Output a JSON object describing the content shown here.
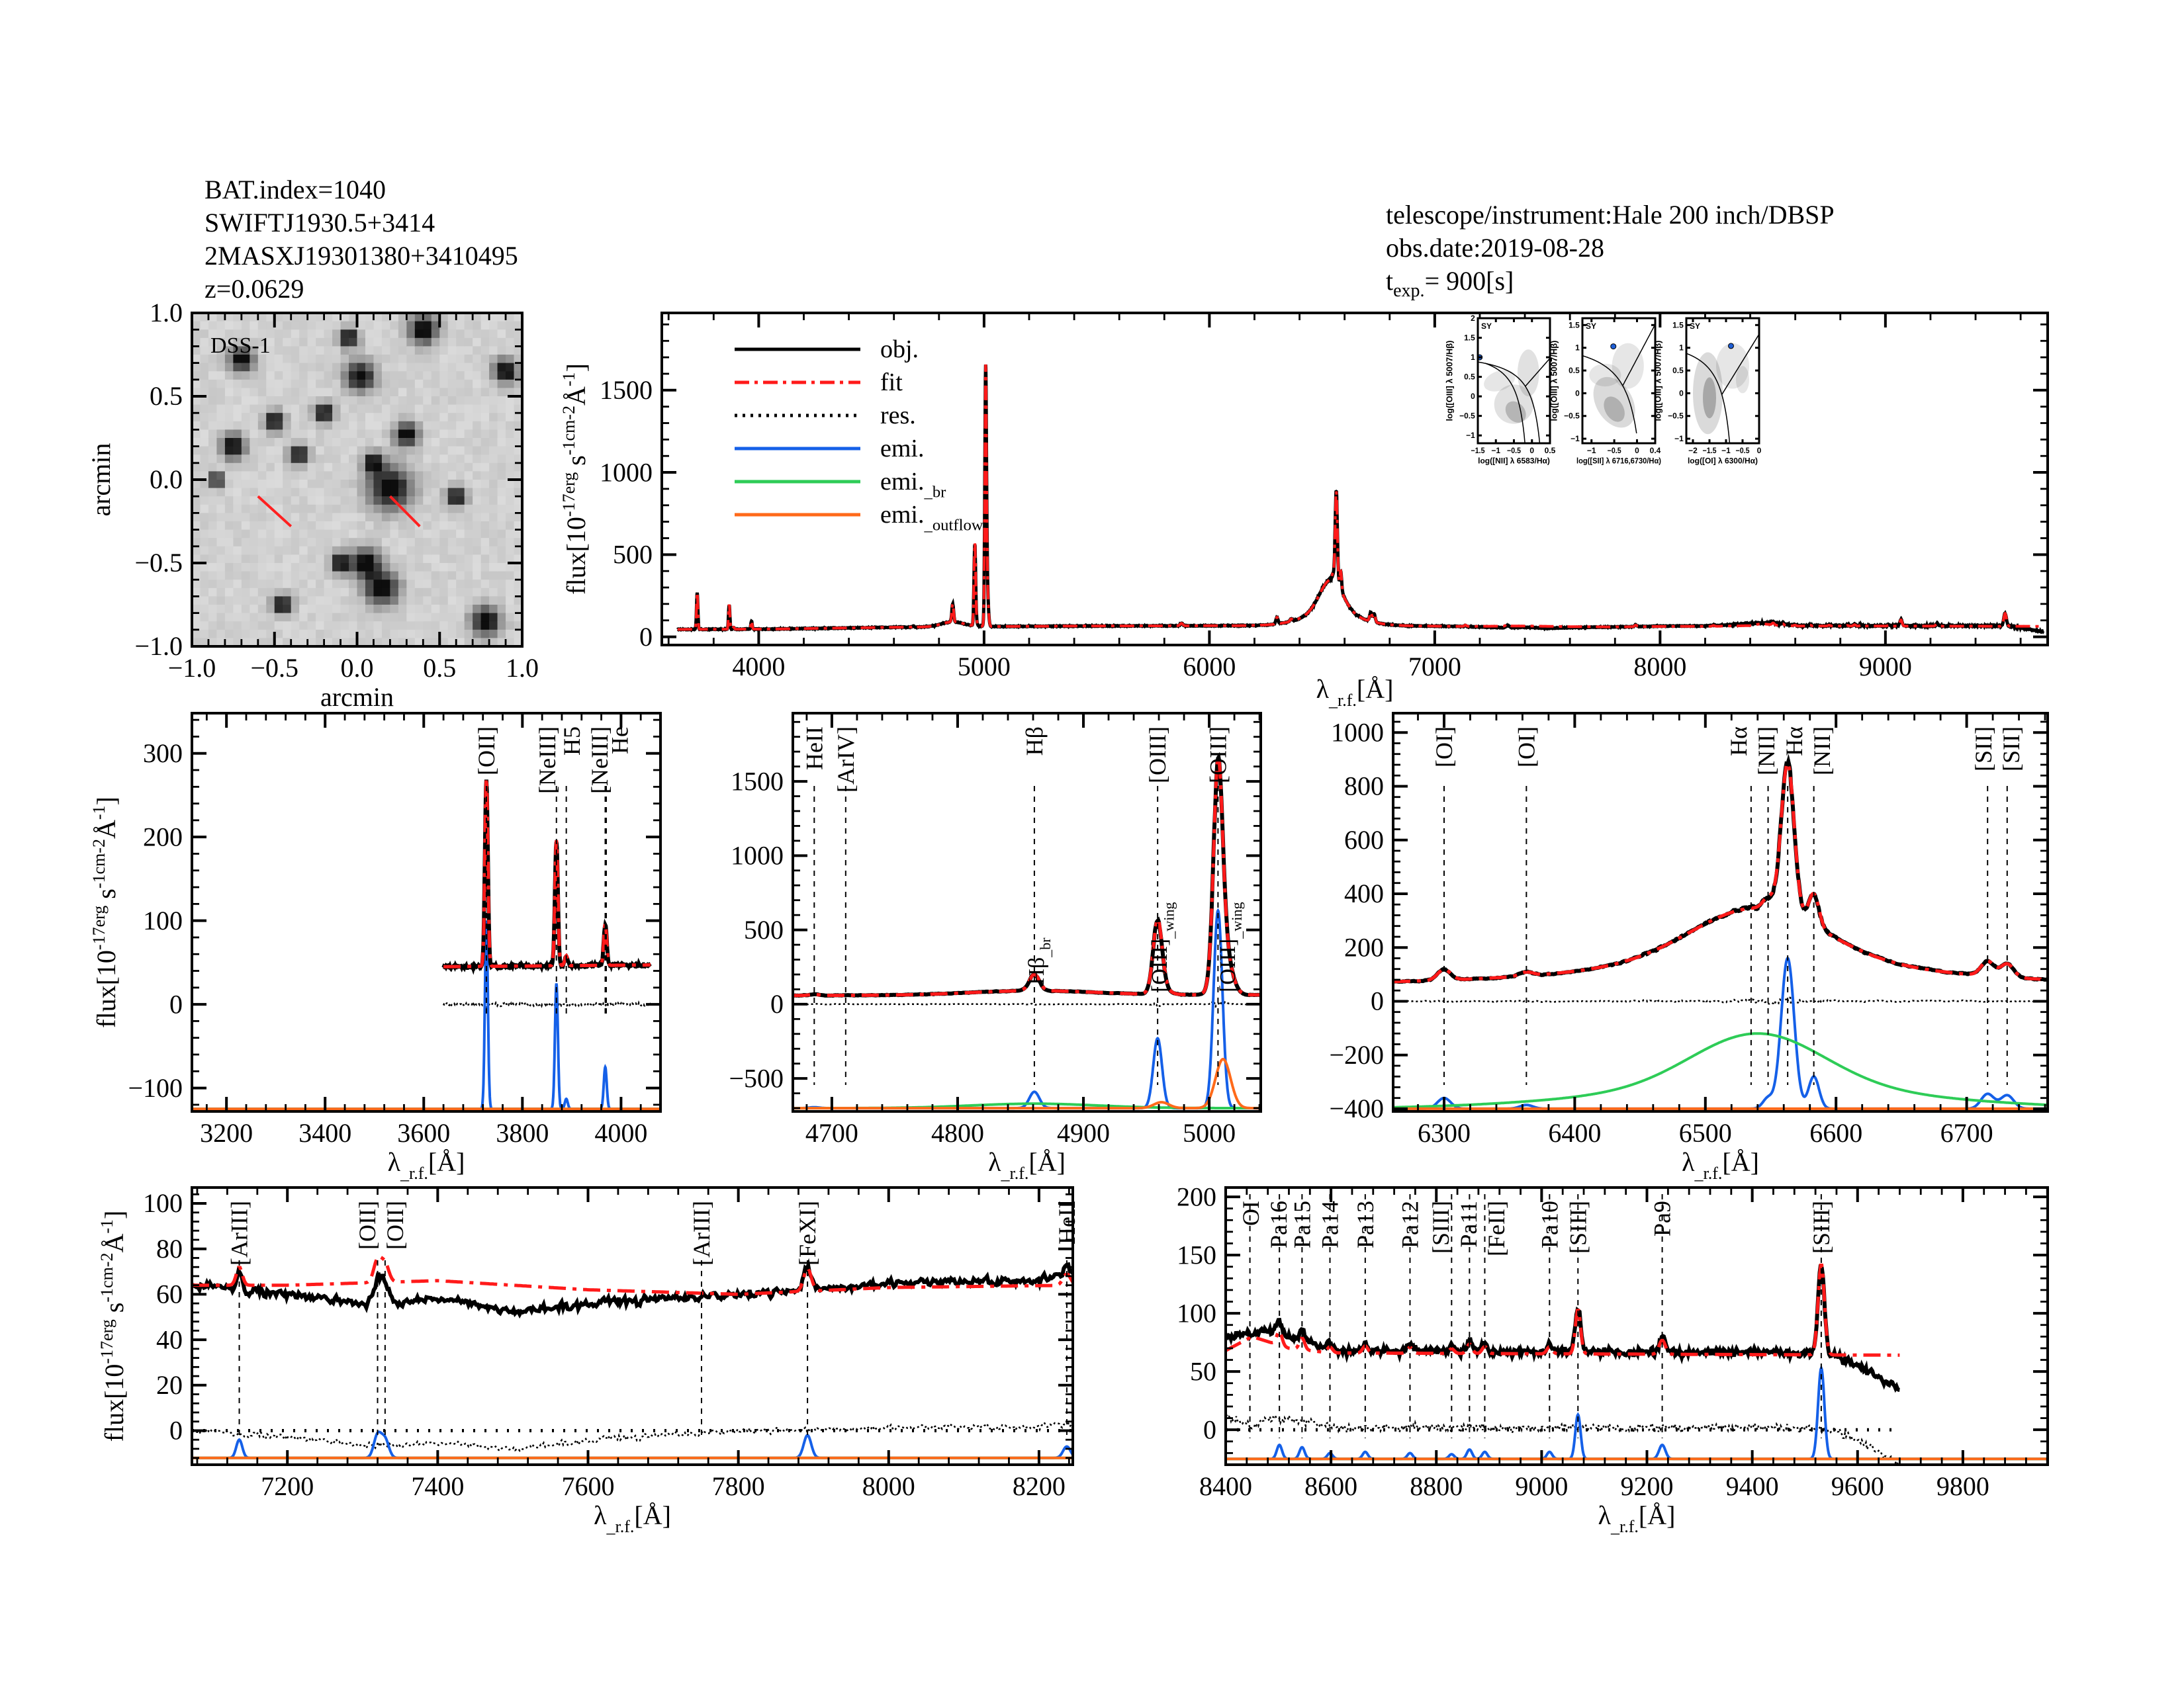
{
  "header_left": [
    "BAT.index=1040",
    "SWIFTJ1930.5+3414",
    "2MASXJ19301380+3410495",
    "z=0.0629"
  ],
  "header_right": {
    "instrument": "telescope/instrument:Hale 200 inch/DBSP",
    "obs_date": "obs.date:2019-08-28",
    "texp_label": "t",
    "texp_sub": "exp.",
    "texp_value": "=  900[s]"
  },
  "colors": {
    "obj": "#000000",
    "fit": "#ff1a1a",
    "res": "#000000",
    "emi": "#1560e8",
    "emi_br": "#2ecc57",
    "emi_outflow": "#ff6a1a",
    "arIV_label": "#e8261a",
    "sy_label": "#1560e8",
    "bpt_point": "#1f5fd6"
  },
  "labels": {
    "flux": "flux[10^-17erg s^-1cm^-2Å^-1]",
    "wavelength": "λ_r.f.[Å]",
    "arcmin": "arcmin",
    "dss": "DSS-1"
  },
  "legend": [
    {
      "label": "obj.",
      "style": "solid",
      "color": "#000000"
    },
    {
      "label": "fit",
      "style": "dashdot",
      "color": "#ff1a1a"
    },
    {
      "label": "res.",
      "style": "dotted",
      "color": "#000000"
    },
    {
      "label": "emi.",
      "style": "solid",
      "color": "#1560e8"
    },
    {
      "label": "emi._br",
      "style": "solid",
      "color": "#2ecc57"
    },
    {
      "label": "emi._outflow",
      "style": "solid",
      "color": "#ff6a1a"
    }
  ],
  "chart_data": [
    {
      "id": "dss",
      "type": "image",
      "title": "DSS-1",
      "xlabel": "arcmin",
      "ylabel": "arcmin",
      "xlim": [
        -1.0,
        1.0
      ],
      "ylim": [
        -1.0,
        1.0
      ],
      "xticks": [
        -1.0,
        -0.5,
        0.0,
        0.5,
        1.0
      ],
      "yticks": [
        -1.0,
        -0.5,
        0.0,
        0.5,
        1.0
      ],
      "tick_labels": [
        "−1.0",
        "−0.5",
        "0.0",
        "0.5",
        "1.0"
      ]
    },
    {
      "id": "main",
      "type": "line",
      "xlabel": "λ_r.f.[Å]",
      "ylabel": "flux[10^-17erg s^-1cm^-2Å^-1]",
      "xlim": [
        3570,
        9720
      ],
      "ylim": [
        -50,
        1970
      ],
      "xticks": [
        4000,
        5000,
        6000,
        7000,
        8000,
        9000
      ],
      "yticks": [
        0,
        500,
        1000,
        1500
      ],
      "spectrum_range": [
        3640,
        9700
      ],
      "legend_position": "top-left"
    },
    {
      "id": "p1",
      "type": "line",
      "xlabel": "λ_r.f.[Å]",
      "ylabel": "flux[10^-17erg s^-1cm^-2Å^-1]",
      "xlim": [
        3130,
        4080
      ],
      "ylim": [
        -128,
        348
      ],
      "xticks": [
        3200,
        3400,
        3600,
        3800,
        4000
      ],
      "yticks": [
        -100,
        0,
        100,
        200,
        300
      ],
      "spectrum_range": [
        3640,
        4060
      ],
      "emi_offset": -125,
      "markers": [
        {
          "wl": 3727,
          "label": "[OII]"
        },
        {
          "wl": 3869,
          "label": "[NeIII]"
        },
        {
          "wl": 3889,
          "label": "H5"
        },
        {
          "wl": 3968,
          "label": "[NeIII]"
        },
        {
          "wl": 3970,
          "label": "He"
        }
      ]
    },
    {
      "id": "p2",
      "type": "line",
      "xlabel": "λ_r.f.[Å]",
      "ylabel": "",
      "xlim": [
        4669,
        5041
      ],
      "ylim": [
        -722,
        1959
      ],
      "xticks": [
        4700,
        4800,
        4900,
        5000
      ],
      "yticks": [
        -500,
        0,
        500,
        1000,
        1500
      ],
      "spectrum_range": [
        4669,
        5041
      ],
      "emi_offset": -700,
      "markers": [
        {
          "wl": 4686,
          "label": "HeII"
        },
        {
          "wl": 4711,
          "label": "[ArIV]",
          "red": true
        },
        {
          "wl": 4861,
          "label": "Hβ"
        },
        {
          "wl": 4959,
          "label": "[OIII]"
        },
        {
          "wl": 5007,
          "label": "[OIII]"
        }
      ],
      "annotations": [
        {
          "wl": 4861,
          "y": 130,
          "text": "Hβ",
          "sub": "br"
        },
        {
          "wl": 4959,
          "y": 80,
          "text": "[OIII]",
          "sub": "wing"
        },
        {
          "wl": 5013,
          "y": 80,
          "text": "[OIII]",
          "sub": "wing"
        }
      ]
    },
    {
      "id": "p3",
      "type": "line",
      "xlabel": "λ_r.f.[Å]",
      "ylabel": "",
      "xlim": [
        6261,
        6762
      ],
      "ylim": [
        -410,
        1072
      ],
      "xticks": [
        6300,
        6400,
        6500,
        6600,
        6700
      ],
      "yticks": [
        -400,
        -200,
        0,
        200,
        400,
        600,
        800,
        1000
      ],
      "spectrum_range": [
        6261,
        6762
      ],
      "emi_offset": -400,
      "markers": [
        {
          "wl": 6300,
          "label": "[OI]"
        },
        {
          "wl": 6363,
          "label": "[OI]"
        },
        {
          "wl": 6535,
          "label": "Hα"
        },
        {
          "wl": 6548,
          "label": "[NII]"
        },
        {
          "wl": 6563,
          "label": "Hα"
        },
        {
          "wl": 6583,
          "label": "[NII]"
        },
        {
          "wl": 6716,
          "label": "[SII]"
        },
        {
          "wl": 6731,
          "label": "[SII]"
        }
      ]
    },
    {
      "id": "p4",
      "type": "line",
      "xlabel": "λ_r.f.[Å]",
      "ylabel": "flux[10^-17erg s^-1cm^-2Å^-1]",
      "xlim": [
        7073,
        8245
      ],
      "ylim": [
        -15,
        107
      ],
      "xticks": [
        7200,
        7400,
        7600,
        7800,
        8000,
        8200
      ],
      "yticks": [
        0,
        20,
        40,
        60,
        80,
        100
      ],
      "spectrum_range": [
        7073,
        8245
      ],
      "emi_offset": -12,
      "zero_line": true,
      "markers": [
        {
          "wl": 7136,
          "label": "[ArIII]"
        },
        {
          "wl": 7320,
          "label": "[OII]"
        },
        {
          "wl": 7330,
          "label": "[OII]"
        },
        {
          "wl": 7751,
          "label": "[ArIII]"
        },
        {
          "wl": 7892,
          "label": "[FeXI]"
        },
        {
          "wl": 8237,
          "label": "HeII"
        }
      ]
    },
    {
      "id": "p5",
      "type": "line",
      "xlabel": "λ_r.f.[Å]",
      "ylabel": "",
      "xlim": [
        8400,
        9961
      ],
      "ylim": [
        -30,
        208
      ],
      "xticks": [
        8400,
        8600,
        8800,
        9000,
        9200,
        9400,
        9600,
        9800
      ],
      "yticks": [
        0,
        50,
        100,
        150,
        200
      ],
      "spectrum_range": [
        8400,
        9680
      ],
      "emi_offset": -25,
      "zero_line": true,
      "markers": [
        {
          "wl": 8446,
          "label": "OI"
        },
        {
          "wl": 8502,
          "label": "Pa16"
        },
        {
          "wl": 8545,
          "label": "Pa15"
        },
        {
          "wl": 8598,
          "label": "Pa14"
        },
        {
          "wl": 8665,
          "label": "Pa13"
        },
        {
          "wl": 8750,
          "label": "Pa12"
        },
        {
          "wl": 8829,
          "label": "[SIII]"
        },
        {
          "wl": 8863,
          "label": "Pa11"
        },
        {
          "wl": 8892,
          "label": "[FeII]"
        },
        {
          "wl": 9015,
          "label": "Pa10"
        },
        {
          "wl": 9069,
          "label": "[SIII]"
        },
        {
          "wl": 9229,
          "label": "Pa9"
        },
        {
          "wl": 9531,
          "label": "[SIII]"
        }
      ]
    },
    {
      "id": "bpt1",
      "type": "scatter",
      "xlabel": "log([NII] λ 6583/Hα)",
      "ylabel": "log([OIII] λ 5007/Hβ)",
      "xlim": [
        -1.5,
        0.5
      ],
      "ylim": [
        -1.2,
        2.0
      ],
      "xticks": [
        -1.5,
        -1.0,
        -0.5,
        0.0,
        0.5
      ],
      "yticks": [
        -1.0,
        -0.5,
        0.0,
        0.5,
        1.0,
        1.5,
        2.0
      ],
      "class_label": "SY",
      "point": [
        -1.45,
        1.0
      ]
    },
    {
      "id": "bpt2",
      "type": "scatter",
      "xlabel": "log([SII] λ 6716,6730/Hα)",
      "ylabel": "log([OIII] λ 5007/Hβ)",
      "xlim": [
        -1.2,
        0.4
      ],
      "ylim": [
        -1.1,
        1.65
      ],
      "xticks": [
        -1.0,
        -0.5,
        0.0,
        0.4
      ],
      "yticks": [
        -1.0,
        -0.5,
        0.0,
        0.5,
        1.0,
        1.5
      ],
      "class_label": "SY",
      "point": [
        -0.52,
        1.03
      ]
    },
    {
      "id": "bpt3",
      "type": "scatter",
      "xlabel": "log([OI] λ 6300/Hα)",
      "ylabel": "log([OIII] λ 5007/Hβ)",
      "xlim": [
        -2.2,
        0.0
      ],
      "ylim": [
        -1.1,
        1.65
      ],
      "xticks": [
        -2.0,
        -1.5,
        -1.0,
        -0.5,
        0.0
      ],
      "yticks": [
        -1.0,
        -0.5,
        0.0,
        0.5,
        1.0,
        1.5
      ],
      "class_label": "SY",
      "point": [
        -0.85,
        1.04
      ]
    }
  ],
  "spectrum_model": {
    "obj_continuum": [
      [
        3640,
        45
      ],
      [
        3900,
        46
      ],
      [
        4050,
        47
      ],
      [
        4600,
        58
      ],
      [
        4800,
        60
      ],
      [
        5100,
        63
      ],
      [
        5500,
        66
      ],
      [
        6200,
        68
      ],
      [
        6900,
        66
      ],
      [
        7080,
        64
      ],
      [
        7200,
        60
      ],
      [
        7300,
        56
      ],
      [
        7400,
        58
      ],
      [
        7500,
        52
      ],
      [
        7600,
        56
      ],
      [
        7800,
        60
      ],
      [
        7900,
        62
      ],
      [
        8000,
        65
      ],
      [
        8200,
        66
      ],
      [
        8250,
        68
      ],
      [
        8400,
        80
      ],
      [
        8480,
        85
      ],
      [
        8560,
        74
      ],
      [
        8620,
        68
      ],
      [
        9500,
        66
      ],
      [
        9560,
        64
      ],
      [
        9680,
        35
      ],
      [
        9700,
        33
      ]
    ],
    "fit_continuum": [
      [
        3640,
        45
      ],
      [
        4050,
        47
      ],
      [
        4600,
        58
      ],
      [
        5100,
        63
      ],
      [
        5500,
        66
      ],
      [
        6200,
        68
      ],
      [
        6900,
        66
      ],
      [
        7080,
        64
      ],
      [
        7200,
        64
      ],
      [
        7400,
        66
      ],
      [
        7600,
        62
      ],
      [
        7800,
        60
      ],
      [
        8000,
        63
      ],
      [
        8250,
        64
      ],
      [
        8400,
        68
      ],
      [
        8450,
        80
      ],
      [
        8520,
        70
      ],
      [
        8600,
        66
      ],
      [
        9700,
        64
      ]
    ],
    "components": [
      {
        "wl": 3727,
        "amp": 225,
        "sigma": 3,
        "kind": "narrow"
      },
      {
        "wl": 3869,
        "amp": 150,
        "sigma": 3,
        "kind": "narrow"
      },
      {
        "wl": 3889,
        "amp": 12,
        "sigma": 3,
        "kind": "narrow"
      },
      {
        "wl": 3968,
        "amp": 50,
        "sigma": 3,
        "kind": "narrow"
      },
      {
        "wl": 4686,
        "amp": 6,
        "sigma": 4,
        "kind": "narrow"
      },
      {
        "wl": 4861,
        "amp": 110,
        "sigma": 4,
        "kind": "narrow"
      },
      {
        "wl": 4861,
        "amp": 30,
        "sigma": 50,
        "kind": "broad"
      },
      {
        "wl": 4959,
        "amp": 470,
        "sigma": 3.5,
        "kind": "narrow"
      },
      {
        "wl": 5007,
        "amp": 1330,
        "sigma": 3.5,
        "kind": "narrow"
      },
      {
        "wl": 4962,
        "amp": 40,
        "sigma": 6,
        "kind": "outflow"
      },
      {
        "wl": 5011,
        "amp": 330,
        "sigma": 6,
        "kind": "outflow"
      },
      {
        "wl": 5876,
        "amp": 15,
        "sigma": 6,
        "kind": "narrow"
      },
      {
        "wl": 6300,
        "amp": 40,
        "sigma": 5,
        "kind": "narrow"
      },
      {
        "wl": 6363,
        "amp": 14,
        "sigma": 5,
        "kind": "narrow"
      },
      {
        "wl": 6548,
        "amp": 40,
        "sigma": 4,
        "kind": "narrow"
      },
      {
        "wl": 6563,
        "amp": 560,
        "sigma": 5,
        "kind": "narrow"
      },
      {
        "wl": 6583,
        "amp": 120,
        "sigma": 4,
        "kind": "narrow"
      },
      {
        "wl": 6540,
        "amp": 200,
        "sigma": 50,
        "kind": "broad"
      },
      {
        "wl": 6540,
        "amp": 80,
        "sigma": 120,
        "kind": "broad"
      },
      {
        "wl": 6716,
        "amp": 55,
        "sigma": 5,
        "kind": "narrow"
      },
      {
        "wl": 6731,
        "amp": 50,
        "sigma": 5,
        "kind": "narrow"
      },
      {
        "wl": 7136,
        "amp": 8,
        "sigma": 4,
        "kind": "narrow"
      },
      {
        "wl": 7320,
        "amp": 10,
        "sigma": 5,
        "kind": "narrow"
      },
      {
        "wl": 7330,
        "amp": 8,
        "sigma": 5,
        "kind": "narrow"
      },
      {
        "wl": 7892,
        "amp": 10,
        "sigma": 5,
        "kind": "narrow"
      },
      {
        "wl": 8237,
        "amp": 5,
        "sigma": 5,
        "kind": "narrow"
      },
      {
        "wl": 8502,
        "amp": 12,
        "sigma": 5,
        "kind": "narrow"
      },
      {
        "wl": 8545,
        "amp": 10,
        "sigma": 5,
        "kind": "narrow"
      },
      {
        "wl": 8598,
        "amp": 5,
        "sigma": 5,
        "kind": "narrow"
      },
      {
        "wl": 8665,
        "amp": 6,
        "sigma": 5,
        "kind": "narrow"
      },
      {
        "wl": 8750,
        "amp": 5,
        "sigma": 5,
        "kind": "narrow"
      },
      {
        "wl": 8829,
        "amp": 4,
        "sigma": 5,
        "kind": "narrow"
      },
      {
        "wl": 8863,
        "amp": 8,
        "sigma": 5,
        "kind": "narrow"
      },
      {
        "wl": 8892,
        "amp": 6,
        "sigma": 5,
        "kind": "narrow"
      },
      {
        "wl": 9015,
        "amp": 6,
        "sigma": 5,
        "kind": "narrow"
      },
      {
        "wl": 9069,
        "amp": 38,
        "sigma": 5,
        "kind": "narrow"
      },
      {
        "wl": 9229,
        "amp": 12,
        "sigma": 6,
        "kind": "narrow"
      },
      {
        "wl": 9531,
        "amp": 78,
        "sigma": 6,
        "kind": "narrow"
      }
    ]
  }
}
